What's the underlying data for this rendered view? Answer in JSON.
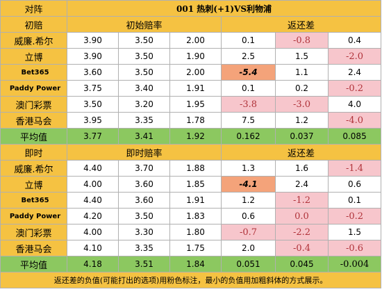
{
  "header": {
    "corner": "对阵",
    "title": "001  热刺(+1)VS利物浦"
  },
  "sections": [
    {
      "label": "初赔",
      "odds_header": "初始赔率",
      "return_header": "返还差",
      "rows": [
        {
          "name": "威廉.希尔",
          "odds": [
            "3.90",
            "3.50",
            "2.00"
          ],
          "diffs": [
            "0.1",
            "-0.8",
            "0.4"
          ],
          "neg": [
            false,
            true,
            false
          ],
          "min": [
            false,
            false,
            false
          ]
        },
        {
          "name": "立博",
          "odds": [
            "3.90",
            "3.50",
            "1.90"
          ],
          "diffs": [
            "2.5",
            "1.5",
            "-2.0"
          ],
          "neg": [
            false,
            false,
            true
          ],
          "min": [
            false,
            false,
            false
          ]
        },
        {
          "name": "Bet365",
          "odds": [
            "3.60",
            "3.50",
            "2.00"
          ],
          "diffs": [
            "-5.4",
            "1.1",
            "2.4"
          ],
          "neg": [
            false,
            false,
            false
          ],
          "min": [
            true,
            false,
            false
          ]
        },
        {
          "name": "Paddy Power",
          "odds": [
            "3.75",
            "3.40",
            "1.91"
          ],
          "diffs": [
            "0.1",
            "0.2",
            "-0.2"
          ],
          "neg": [
            false,
            false,
            true
          ],
          "min": [
            false,
            false,
            false
          ]
        },
        {
          "name": "澳门彩票",
          "odds": [
            "3.50",
            "3.20",
            "1.95"
          ],
          "diffs": [
            "-3.8",
            "-3.0",
            "4.0"
          ],
          "neg": [
            true,
            true,
            false
          ],
          "min": [
            false,
            false,
            false
          ]
        },
        {
          "name": "香港马会",
          "odds": [
            "3.95",
            "3.35",
            "1.78"
          ],
          "diffs": [
            "7.5",
            "1.2",
            "-4.0"
          ],
          "neg": [
            false,
            false,
            true
          ],
          "min": [
            false,
            false,
            false
          ]
        }
      ],
      "avg": {
        "label": "平均值",
        "odds": [
          "3.77",
          "3.41",
          "1.92"
        ],
        "diffs": [
          "0.162",
          "0.037",
          "0.085"
        ]
      }
    },
    {
      "label": "即时",
      "odds_header": "即时赔率",
      "return_header": "返还差",
      "rows": [
        {
          "name": "威廉.希尔",
          "odds": [
            "4.40",
            "3.70",
            "1.88"
          ],
          "diffs": [
            "1.3",
            "1.6",
            "-1.4"
          ],
          "neg": [
            false,
            false,
            true
          ],
          "min": [
            false,
            false,
            false
          ]
        },
        {
          "name": "立博",
          "odds": [
            "4.00",
            "3.60",
            "1.85"
          ],
          "diffs": [
            "-4.1",
            "2.4",
            "0.6"
          ],
          "neg": [
            false,
            false,
            false
          ],
          "min": [
            true,
            false,
            false
          ]
        },
        {
          "name": "Bet365",
          "odds": [
            "4.40",
            "3.60",
            "1.91"
          ],
          "diffs": [
            "1.2",
            "-1.2",
            "0.1"
          ],
          "neg": [
            false,
            true,
            false
          ],
          "min": [
            false,
            false,
            false
          ]
        },
        {
          "name": "Paddy Power",
          "odds": [
            "4.20",
            "3.50",
            "1.83"
          ],
          "diffs": [
            "0.6",
            "0.0",
            "-0.2"
          ],
          "neg": [
            false,
            true,
            true
          ],
          "min": [
            false,
            false,
            false
          ]
        },
        {
          "name": "澳门彩票",
          "odds": [
            "4.00",
            "3.30",
            "1.80"
          ],
          "diffs": [
            "-0.7",
            "-2.2",
            "1.5"
          ],
          "neg": [
            true,
            true,
            false
          ],
          "min": [
            false,
            false,
            false
          ]
        },
        {
          "name": "香港马会",
          "odds": [
            "4.10",
            "3.35",
            "1.75"
          ],
          "diffs": [
            "2.0",
            "-0.4",
            "-0.6"
          ],
          "neg": [
            false,
            true,
            true
          ],
          "min": [
            false,
            false,
            false
          ]
        }
      ],
      "avg": {
        "label": "平均值",
        "odds": [
          "4.18",
          "3.51",
          "1.84"
        ],
        "diffs": [
          "0.051",
          "0.045",
          "-0.004"
        ],
        "diffs_neg": [
          false,
          false,
          true
        ]
      }
    }
  ],
  "footnote": "返还差的负值(可能打出的选项)用粉色标注，最小的负值用加粗斜体的方式展示。",
  "colors": {
    "header_bg": "#f5c242",
    "avg_bg": "#8cc860",
    "neg_bg": "#f7c6cc",
    "min_bg": "#f4a37a"
  }
}
